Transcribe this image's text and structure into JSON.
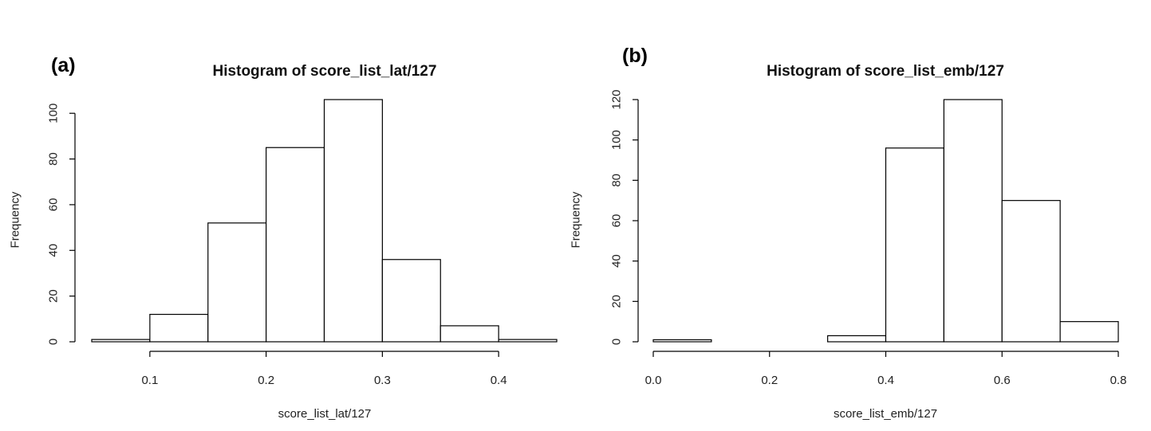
{
  "chart_data": [
    {
      "type": "bar",
      "panel_label": "(a)",
      "title": "Histogram of score_list_lat/127",
      "xlabel": "score_list_lat/127",
      "ylabel": "Frequency",
      "bins": [
        [
          0.05,
          0.1
        ],
        [
          0.1,
          0.15
        ],
        [
          0.15,
          0.2
        ],
        [
          0.2,
          0.25
        ],
        [
          0.25,
          0.3
        ],
        [
          0.3,
          0.35
        ],
        [
          0.35,
          0.4
        ],
        [
          0.4,
          0.45
        ]
      ],
      "values": [
        1,
        12,
        52,
        85,
        106,
        36,
        7,
        1
      ],
      "xlim": [
        0.05,
        0.45
      ],
      "ylim": [
        0,
        106
      ],
      "xticks": [
        0.1,
        0.2,
        0.3,
        0.4
      ],
      "xtick_labels": [
        "0.1",
        "0.2",
        "0.3",
        "0.4"
      ],
      "yticks": [
        0,
        20,
        40,
        60,
        80,
        100
      ],
      "ytick_labels": [
        "0",
        "20",
        "40",
        "60",
        "80",
        "100"
      ],
      "grid": false
    },
    {
      "type": "bar",
      "panel_label": "(b)",
      "title": "Histogram of score_list_emb/127",
      "xlabel": "score_list_emb/127",
      "ylabel": "Frequency",
      "bins": [
        [
          0.0,
          0.1
        ],
        [
          0.1,
          0.2
        ],
        [
          0.2,
          0.3
        ],
        [
          0.3,
          0.4
        ],
        [
          0.4,
          0.5
        ],
        [
          0.5,
          0.6
        ],
        [
          0.6,
          0.7
        ],
        [
          0.7,
          0.8
        ]
      ],
      "values": [
        1,
        0,
        0,
        3,
        96,
        120,
        70,
        10
      ],
      "xlim": [
        0.0,
        0.8
      ],
      "ylim": [
        0,
        120
      ],
      "xticks": [
        0.0,
        0.2,
        0.4,
        0.6,
        0.8
      ],
      "xtick_labels": [
        "0.0",
        "0.2",
        "0.4",
        "0.6",
        "0.8"
      ],
      "yticks": [
        0,
        20,
        40,
        60,
        80,
        100,
        120
      ],
      "ytick_labels": [
        "0",
        "20",
        "40",
        "60",
        "80",
        "100",
        "120"
      ],
      "grid": false
    }
  ]
}
